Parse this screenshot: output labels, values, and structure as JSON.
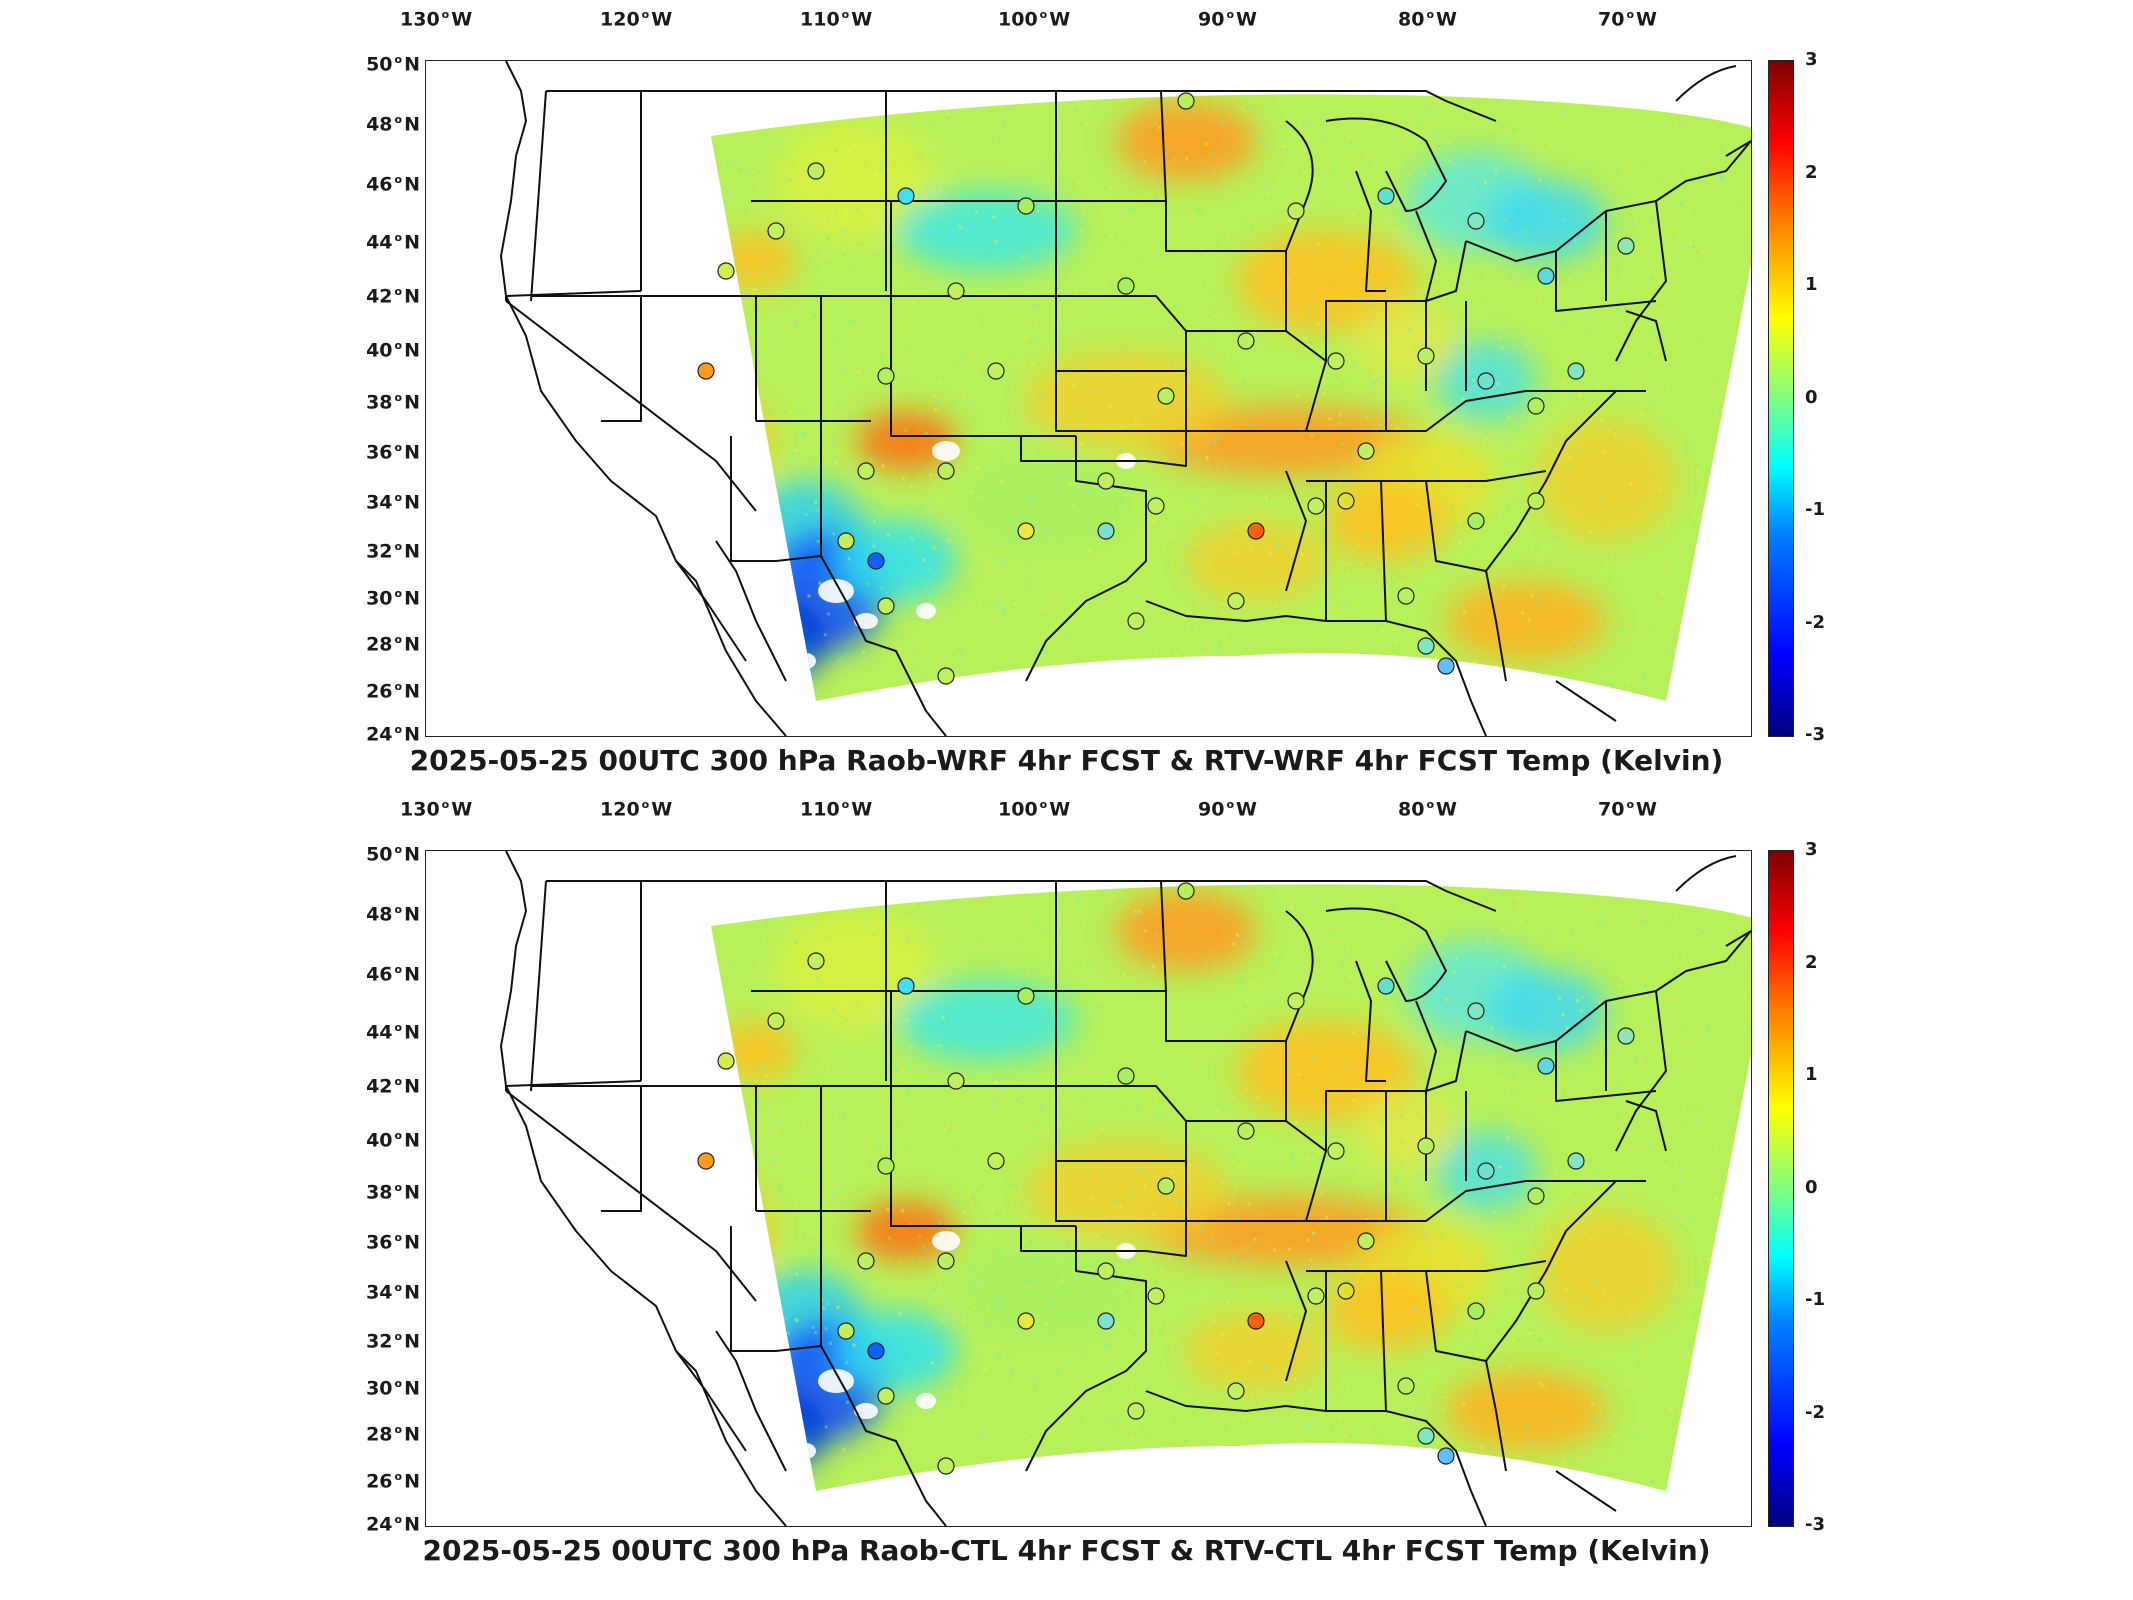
{
  "panels": [
    {
      "id": "top",
      "title": "2025-05-25 00UTC 300 hPa Raob-WRF 4hr FCST & RTV-WRF 4hr FCST Temp (Kelvin)"
    },
    {
      "id": "bottom",
      "title": "2025-05-25 00UTC 300 hPa Raob-CTL 4hr FCST & RTV-CTL 4hr FCST Temp (Kelvin)"
    }
  ],
  "axes": {
    "lon_ticks": [
      {
        "value": -130,
        "label": "130",
        "dir": "W"
      },
      {
        "value": -120,
        "label": "120",
        "dir": "W"
      },
      {
        "value": -110,
        "label": "110",
        "dir": "W"
      },
      {
        "value": -100,
        "label": "100",
        "dir": "W"
      },
      {
        "value": -90,
        "label": "90",
        "dir": "W"
      },
      {
        "value": -80,
        "label": "80",
        "dir": "W"
      },
      {
        "value": -70,
        "label": "70",
        "dir": "W"
      }
    ],
    "lat_ticks": [
      {
        "value": 50,
        "label": "50",
        "dir": "N"
      },
      {
        "value": 48,
        "label": "48",
        "dir": "N"
      },
      {
        "value": 46,
        "label": "46",
        "dir": "N"
      },
      {
        "value": 44,
        "label": "44",
        "dir": "N"
      },
      {
        "value": 42,
        "label": "42",
        "dir": "N"
      },
      {
        "value": 40,
        "label": "40",
        "dir": "N"
      },
      {
        "value": 38,
        "label": "38",
        "dir": "N"
      },
      {
        "value": 36,
        "label": "36",
        "dir": "N"
      },
      {
        "value": 34,
        "label": "34",
        "dir": "N"
      },
      {
        "value": 32,
        "label": "32",
        "dir": "N"
      },
      {
        "value": 30,
        "label": "30",
        "dir": "N"
      },
      {
        "value": 28,
        "label": "28",
        "dir": "N"
      },
      {
        "value": 26,
        "label": "26",
        "dir": "N"
      },
      {
        "value": 24,
        "label": "24",
        "dir": "N"
      }
    ]
  },
  "colorbar": {
    "colormap": "jet",
    "range": [
      -3,
      3
    ],
    "ticks": [
      "3",
      "2",
      "1",
      "0",
      "-1",
      "-2",
      "-3"
    ]
  },
  "colors": {
    "field_base": "#b8f05a",
    "warm": "#ffc020",
    "cool": "#30e0f0",
    "cold": "#0030ff",
    "hot": "#ff6010"
  }
}
